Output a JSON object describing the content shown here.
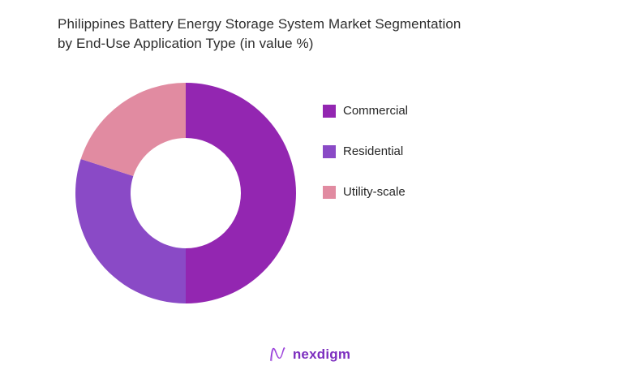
{
  "chart_data": {
    "type": "pie",
    "subtype": "donut",
    "title": "Philippines Battery Energy Storage System Market Segmentation\nby End-Use Application Type (in value %)",
    "segments": [
      {
        "label": "Commercial",
        "value": 50,
        "color": "#9326b1"
      },
      {
        "label": "Residential",
        "value": 30,
        "color": "#8a4ac6"
      },
      {
        "label": "Utility-scale",
        "value": 20,
        "color": "#e18ba1"
      }
    ],
    "start_angle_deg": 0,
    "direction": "clockwise",
    "inner_radius_ratio": 0.5,
    "hole_color": "#ffffff",
    "legend_position": "right",
    "data_labels": false
  },
  "brand": {
    "name": "nexdigm",
    "color": "#7c2ebf"
  }
}
